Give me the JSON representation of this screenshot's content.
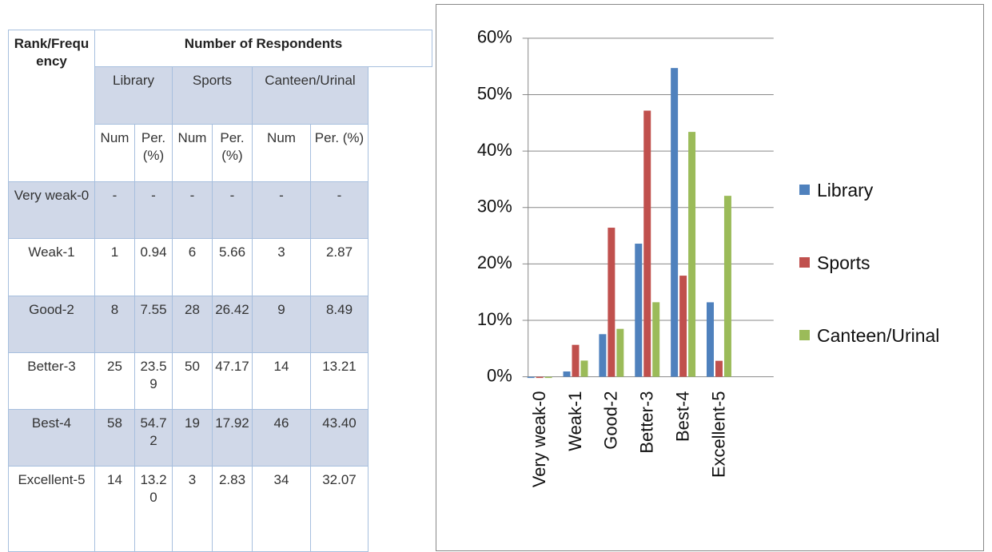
{
  "table": {
    "header": [
      "Rank/Frequency",
      "Number of Respondents"
    ],
    "groups": [
      "Library",
      "Sports",
      "Canteen/Urinal"
    ],
    "subheaders": [
      "Num",
      "Per. (%)",
      "Num",
      "Per. (%)",
      "Num",
      "Per. (%)"
    ],
    "rows": [
      [
        "Very weak-0",
        "-",
        "-",
        "-",
        "-",
        "-",
        "-"
      ],
      [
        "Weak-1",
        "1",
        "0.94",
        "6",
        "5.66",
        "3",
        "2.87"
      ],
      [
        "Good-2",
        "8",
        "7.55",
        "28",
        "26.42",
        "9",
        "8.49"
      ],
      [
        "Better-3",
        "25",
        "23.59",
        "50",
        "47.17",
        "14",
        "13.21"
      ],
      [
        "Best-4",
        "58",
        "54.72",
        "19",
        "17.92",
        "46",
        "43.40"
      ],
      [
        "Excellent-5",
        "14",
        "13.20",
        "3",
        "2.83",
        "34",
        "32.07"
      ]
    ]
  },
  "chart_data": {
    "type": "bar",
    "categories": [
      "Very weak-0",
      "Weak-1",
      "Good-2",
      "Better-3",
      "Best-4",
      "Excellent-5"
    ],
    "series": [
      {
        "name": "Library",
        "color": "#4f81bd",
        "values": [
          0,
          0.94,
          7.55,
          23.59,
          54.72,
          13.2
        ]
      },
      {
        "name": "Sports",
        "color": "#c0504d",
        "values": [
          0,
          5.66,
          26.42,
          47.17,
          17.92,
          2.83
        ]
      },
      {
        "name": "Canteen/Urinal",
        "color": "#9bbb59",
        "values": [
          0,
          2.87,
          8.49,
          13.21,
          43.4,
          32.07
        ]
      }
    ],
    "ylim": [
      0,
      60
    ],
    "yticks": [
      {
        "value": 0,
        "label": "0%"
      },
      {
        "value": 10,
        "label": "10%"
      },
      {
        "value": 20,
        "label": "20%"
      },
      {
        "value": 30,
        "label": "30%"
      },
      {
        "value": 40,
        "label": "40%"
      },
      {
        "value": 50,
        "label": "50%"
      },
      {
        "value": 60,
        "label": "60%"
      }
    ],
    "grid": true,
    "legend": "right"
  }
}
